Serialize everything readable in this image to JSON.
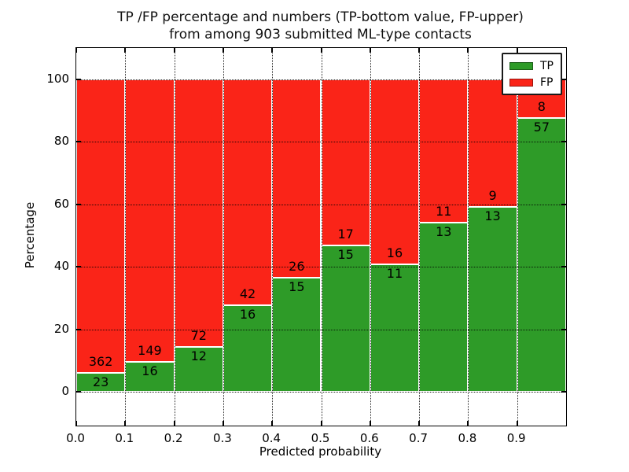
{
  "title": {
    "line1": "TP /FP percentage and numbers (TP-bottom value, FP-upper)",
    "line2": "from among 903 submitted ML-type contacts"
  },
  "axes": {
    "xlabel": "Predicted probability",
    "ylabel": "Percentage",
    "x_tick_labels": [
      "0.0",
      "0.1",
      "0.2",
      "0.3",
      "0.4",
      "0.5",
      "0.6",
      "0.7",
      "0.8",
      "0.9"
    ],
    "y_tick_labels": [
      "0",
      "20",
      "40",
      "60",
      "80",
      "100"
    ]
  },
  "legend": {
    "position": "upper-right",
    "entries": [
      {
        "label": "TP",
        "color": "#2e9b28"
      },
      {
        "label": "FP",
        "color": "#fa2418"
      }
    ]
  },
  "chart_data": {
    "type": "bar",
    "stacked": true,
    "normalized": "each probability bin scaled to 100%",
    "title": "TP /FP percentage and numbers (TP-bottom value, FP-upper) from among 903 submitted ML-type contacts",
    "xlabel": "Predicted probability",
    "ylabel": "Percentage",
    "total_contacts": 903,
    "bins": [
      "0.0-0.1",
      "0.1-0.2",
      "0.2-0.3",
      "0.3-0.4",
      "0.4-0.5",
      "0.5-0.6",
      "0.6-0.7",
      "0.7-0.8",
      "0.8-0.9",
      "0.9-1.0"
    ],
    "x_bin_starts": [
      0.0,
      0.1,
      0.2,
      0.3,
      0.4,
      0.5,
      0.6,
      0.7,
      0.8,
      0.9
    ],
    "series": [
      {
        "name": "TP",
        "color": "#2e9b28",
        "counts": [
          23,
          16,
          12,
          16,
          15,
          15,
          11,
          13,
          13,
          57
        ],
        "percentages": [
          6.0,
          9.7,
          14.3,
          27.6,
          36.6,
          46.9,
          40.7,
          54.2,
          59.1,
          87.7
        ]
      },
      {
        "name": "FP",
        "color": "#fa2418",
        "counts": [
          362,
          149,
          72,
          42,
          26,
          17,
          16,
          11,
          9,
          8
        ],
        "percentages": [
          94.0,
          90.3,
          85.7,
          72.4,
          63.4,
          53.1,
          59.3,
          45.8,
          40.9,
          12.3
        ]
      }
    ],
    "ylim": [
      -11,
      110
    ],
    "xlim": [
      0.0,
      1.0
    ],
    "grid": true,
    "grid_style": "dotted",
    "y_gridlines": [
      0,
      20,
      40,
      60,
      80,
      100
    ],
    "x_gridlines": [
      0.1,
      0.2,
      0.3,
      0.4,
      0.5,
      0.6,
      0.7,
      0.8,
      0.9
    ],
    "legend_position": "upper right"
  }
}
